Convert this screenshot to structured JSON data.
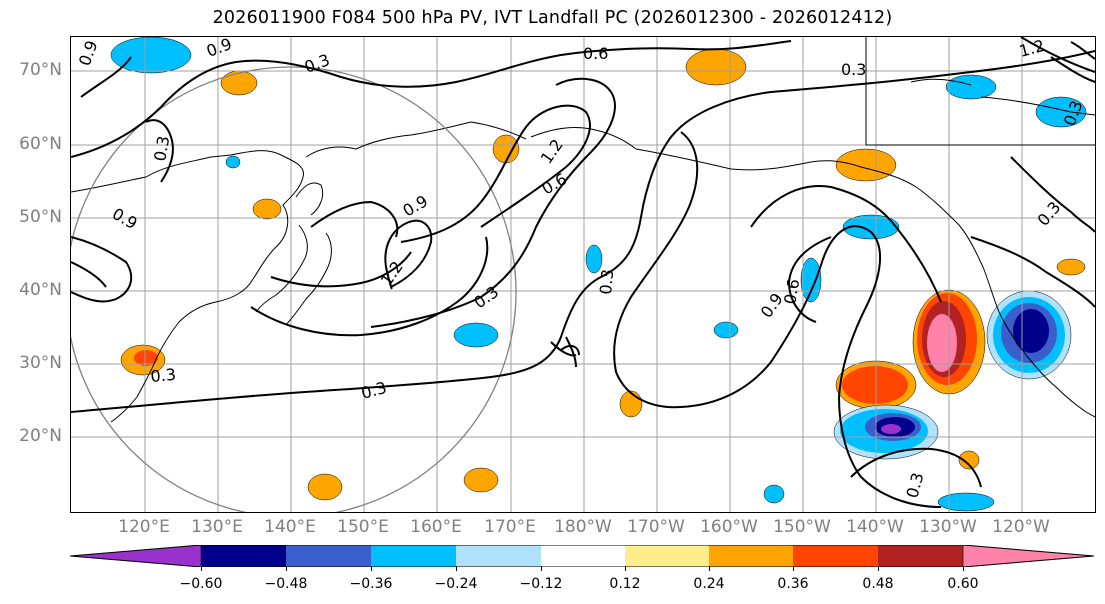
{
  "title": "2026011900 F084 500 hPa PV, IVT Landfall PC (2026012300 - 2026012412)",
  "lat_labels": [
    "70°N",
    "60°N",
    "50°N",
    "40°N",
    "30°N",
    "20°N"
  ],
  "lon_labels": [
    "120°E",
    "130°E",
    "140°E",
    "150°E",
    "160°E",
    "170°E",
    "180°W",
    "170°W",
    "160°W",
    "150°W",
    "140°W",
    "130°W",
    "120°W"
  ],
  "contour_labels": [
    "0.3",
    "0.6",
    "0.9",
    "1.2",
    "0.3",
    "0.6",
    "0.9",
    "1.2",
    "0.3",
    "0.3",
    "0.9",
    "0.6",
    "0.3",
    "0.3",
    "0.3",
    "0.3",
    "0.9",
    "0.3",
    "0.3",
    "0.9",
    "1.2"
  ],
  "colorbar": {
    "colors": [
      "#9932cc",
      "#00008b",
      "#3a5fcd",
      "#00bfff",
      "#b0e2ff",
      "#ffffff",
      "#ffec8b",
      "#ffa500",
      "#ff4500",
      "#b22222",
      "#ff82ab"
    ],
    "tick_labels": [
      "−0.60",
      "−0.48",
      "−0.36",
      "−0.24",
      "−0.12",
      "0.12",
      "0.24",
      "0.36",
      "0.48",
      "0.60"
    ]
  }
}
